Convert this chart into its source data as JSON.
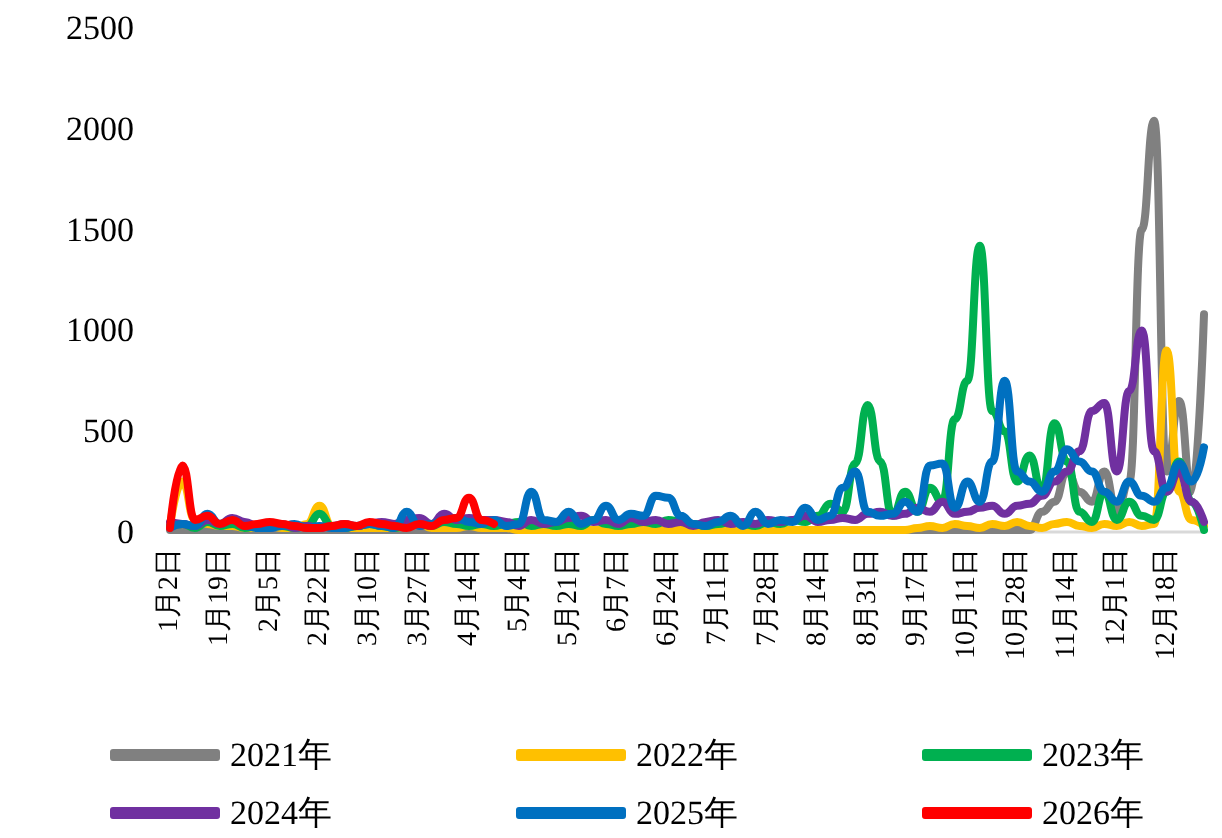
{
  "chart_data": {
    "type": "line",
    "categories": [
      "1月2日",
      null,
      null,
      null,
      "1月19日",
      null,
      null,
      null,
      "2月5日",
      null,
      null,
      null,
      "2月22日",
      null,
      null,
      null,
      "3月10日",
      null,
      null,
      null,
      "3月27日",
      null,
      null,
      null,
      "4月14日",
      null,
      null,
      null,
      "5月4日",
      null,
      null,
      null,
      "5月21日",
      null,
      null,
      null,
      "6月7日",
      null,
      null,
      null,
      "6月24日",
      null,
      null,
      null,
      "7月11日",
      null,
      null,
      null,
      "7月28日",
      null,
      null,
      null,
      "8月14日",
      null,
      null,
      null,
      "8月31日",
      null,
      null,
      null,
      "9月17日",
      null,
      null,
      null,
      "10月11日",
      null,
      null,
      null,
      "10月28日",
      null,
      null,
      null,
      "11月14日",
      null,
      null,
      null,
      "12月1日",
      null,
      null,
      null,
      "12月18日",
      null,
      null,
      null
    ],
    "series": [
      {
        "name": "2021年",
        "color": "#808080",
        "values": [
          10,
          10,
          10,
          10,
          10,
          10,
          10,
          10,
          10,
          10,
          10,
          10,
          10,
          10,
          10,
          10,
          10,
          10,
          10,
          10,
          10,
          10,
          10,
          10,
          10,
          10,
          10,
          10,
          10,
          10,
          10,
          10,
          10,
          10,
          10,
          10,
          10,
          10,
          10,
          10,
          10,
          10,
          10,
          10,
          10,
          10,
          10,
          10,
          10,
          10,
          10,
          10,
          10,
          10,
          10,
          10,
          10,
          10,
          10,
          10,
          10,
          10,
          10,
          10,
          10,
          10,
          10,
          10,
          10,
          10,
          100,
          150,
          300,
          200,
          150,
          300,
          100,
          250,
          1500,
          2040,
          300,
          650,
          200,
          1080
        ]
      },
      {
        "name": "2022年",
        "color": "#ffc000",
        "values": [
          30,
          250,
          60,
          40,
          30,
          30,
          20,
          20,
          30,
          20,
          20,
          40,
          130,
          30,
          20,
          20,
          20,
          20,
          20,
          30,
          40,
          20,
          20,
          20,
          30,
          20,
          20,
          20,
          10,
          10,
          10,
          10,
          10,
          10,
          10,
          10,
          10,
          10,
          10,
          10,
          10,
          10,
          10,
          10,
          10,
          10,
          10,
          10,
          10,
          10,
          10,
          10,
          10,
          10,
          10,
          10,
          10,
          10,
          10,
          10,
          20,
          30,
          20,
          40,
          30,
          20,
          40,
          30,
          50,
          30,
          20,
          40,
          50,
          30,
          20,
          40,
          30,
          50,
          30,
          40,
          900,
          200,
          60,
          30
        ]
      },
      {
        "name": "2023年",
        "color": "#00b050",
        "values": [
          30,
          40,
          20,
          50,
          30,
          40,
          20,
          30,
          40,
          30,
          20,
          30,
          90,
          30,
          20,
          30,
          40,
          30,
          20,
          30,
          40,
          30,
          50,
          40,
          30,
          40,
          30,
          40,
          50,
          30,
          40,
          30,
          40,
          30,
          60,
          40,
          30,
          40,
          50,
          40,
          60,
          50,
          40,
          30,
          40,
          50,
          40,
          30,
          50,
          40,
          60,
          50,
          80,
          140,
          100,
          340,
          630,
          350,
          80,
          200,
          100,
          220,
          150,
          560,
          750,
          1420,
          600,
          500,
          250,
          380,
          200,
          540,
          350,
          100,
          50,
          200,
          60,
          150,
          80,
          60,
          200,
          350,
          150,
          10
        ]
      },
      {
        "name": "2024年",
        "color": "#7030a0",
        "values": [
          50,
          40,
          30,
          60,
          40,
          70,
          50,
          30,
          20,
          40,
          20,
          30,
          20,
          30,
          40,
          30,
          40,
          50,
          40,
          60,
          70,
          40,
          90,
          60,
          70,
          60,
          60,
          50,
          30,
          60,
          40,
          50,
          70,
          80,
          50,
          60,
          40,
          70,
          50,
          60,
          40,
          50,
          30,
          50,
          60,
          40,
          50,
          40,
          60,
          50,
          60,
          80,
          50,
          60,
          70,
          60,
          90,
          100,
          80,
          90,
          120,
          100,
          150,
          90,
          100,
          120,
          130,
          90,
          130,
          140,
          180,
          250,
          300,
          400,
          600,
          640,
          300,
          700,
          1000,
          400,
          200,
          300,
          150,
          50
        ]
      },
      {
        "name": "2025年",
        "color": "#0070c0",
        "values": [
          20,
          40,
          30,
          90,
          40,
          60,
          30,
          20,
          20,
          30,
          40,
          20,
          30,
          20,
          20,
          30,
          40,
          30,
          20,
          100,
          30,
          40,
          60,
          70,
          50,
          40,
          60,
          30,
          40,
          200,
          60,
          50,
          100,
          40,
          60,
          130,
          60,
          90,
          80,
          180,
          170,
          80,
          40,
          30,
          50,
          80,
          30,
          100,
          40,
          60,
          50,
          120,
          60,
          80,
          220,
          300,
          100,
          80,
          90,
          150,
          100,
          330,
          340,
          120,
          250,
          150,
          350,
          750,
          300,
          250,
          200,
          300,
          410,
          350,
          300,
          200,
          150,
          250,
          180,
          150,
          220,
          340,
          250,
          420
        ]
      },
      {
        "name": "2026年",
        "color": "#ff0000",
        "values": [
          20,
          330,
          60,
          80,
          40,
          60,
          30,
          40,
          50,
          40,
          30,
          20,
          20,
          30,
          40,
          30,
          50,
          40,
          30,
          20,
          40,
          30,
          60,
          70,
          170,
          60,
          40,
          null,
          null,
          null,
          null,
          null,
          null,
          null,
          null,
          null,
          null,
          null,
          null,
          null,
          null,
          null,
          null,
          null,
          null,
          null,
          null,
          null,
          null,
          null,
          null,
          null,
          null,
          null,
          null,
          null,
          null,
          null,
          null,
          null,
          null,
          null,
          null,
          null,
          null,
          null,
          null,
          null,
          null,
          null,
          null,
          null,
          null,
          null,
          null,
          null,
          null,
          null,
          null,
          null,
          null,
          null,
          null,
          null
        ]
      }
    ],
    "ylim": [
      0,
      2500
    ],
    "yticks": [
      0,
      500,
      1000,
      1500,
      2000,
      2500
    ],
    "legend": "bottom",
    "grid": false,
    "marker": "none",
    "line_style": "solid"
  }
}
